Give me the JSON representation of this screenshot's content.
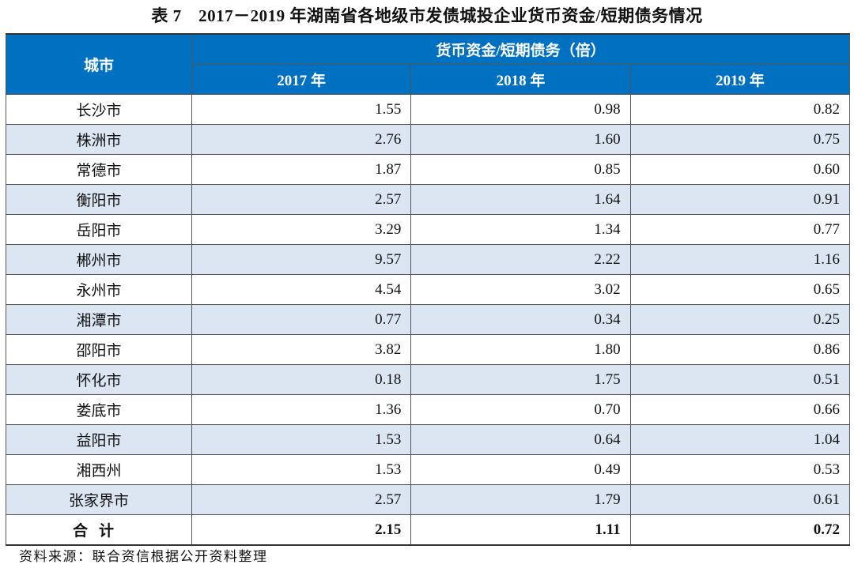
{
  "title": "表 7　2017－2019 年湖南省各地级市发债城投企业货币资金/短期债务情况",
  "header": {
    "city": "城市",
    "group": "货币资金/短期债务（倍）",
    "years": [
      "2017 年",
      "2018 年",
      "2019 年"
    ]
  },
  "rows": [
    {
      "city": "长沙市",
      "values": [
        "1.55",
        "0.98",
        "0.82"
      ]
    },
    {
      "city": "株洲市",
      "values": [
        "2.76",
        "1.60",
        "0.75"
      ]
    },
    {
      "city": "常德市",
      "values": [
        "1.87",
        "0.85",
        "0.60"
      ]
    },
    {
      "city": "衡阳市",
      "values": [
        "2.57",
        "1.64",
        "0.91"
      ]
    },
    {
      "city": "岳阳市",
      "values": [
        "3.29",
        "1.34",
        "0.77"
      ]
    },
    {
      "city": "郴州市",
      "values": [
        "9.57",
        "2.22",
        "1.16"
      ]
    },
    {
      "city": "永州市",
      "values": [
        "4.54",
        "3.02",
        "0.65"
      ]
    },
    {
      "city": "湘潭市",
      "values": [
        "0.77",
        "0.34",
        "0.25"
      ]
    },
    {
      "city": "邵阳市",
      "values": [
        "3.82",
        "1.80",
        "0.86"
      ]
    },
    {
      "city": "怀化市",
      "values": [
        "0.18",
        "1.75",
        "0.51"
      ]
    },
    {
      "city": "娄底市",
      "values": [
        "1.36",
        "0.70",
        "0.66"
      ]
    },
    {
      "city": "益阳市",
      "values": [
        "1.53",
        "0.64",
        "1.04"
      ]
    },
    {
      "city": "湘西州",
      "values": [
        "1.53",
        "0.49",
        "0.53"
      ]
    },
    {
      "city": "张家界市",
      "values": [
        "2.57",
        "1.79",
        "0.61"
      ]
    }
  ],
  "total": {
    "city": "合计",
    "values": [
      "2.15",
      "1.11",
      "0.72"
    ]
  },
  "source": "资料来源：联合资信根据公开资料整理",
  "colors": {
    "header": "#0070c0",
    "alt_row": "#dce6f2"
  }
}
